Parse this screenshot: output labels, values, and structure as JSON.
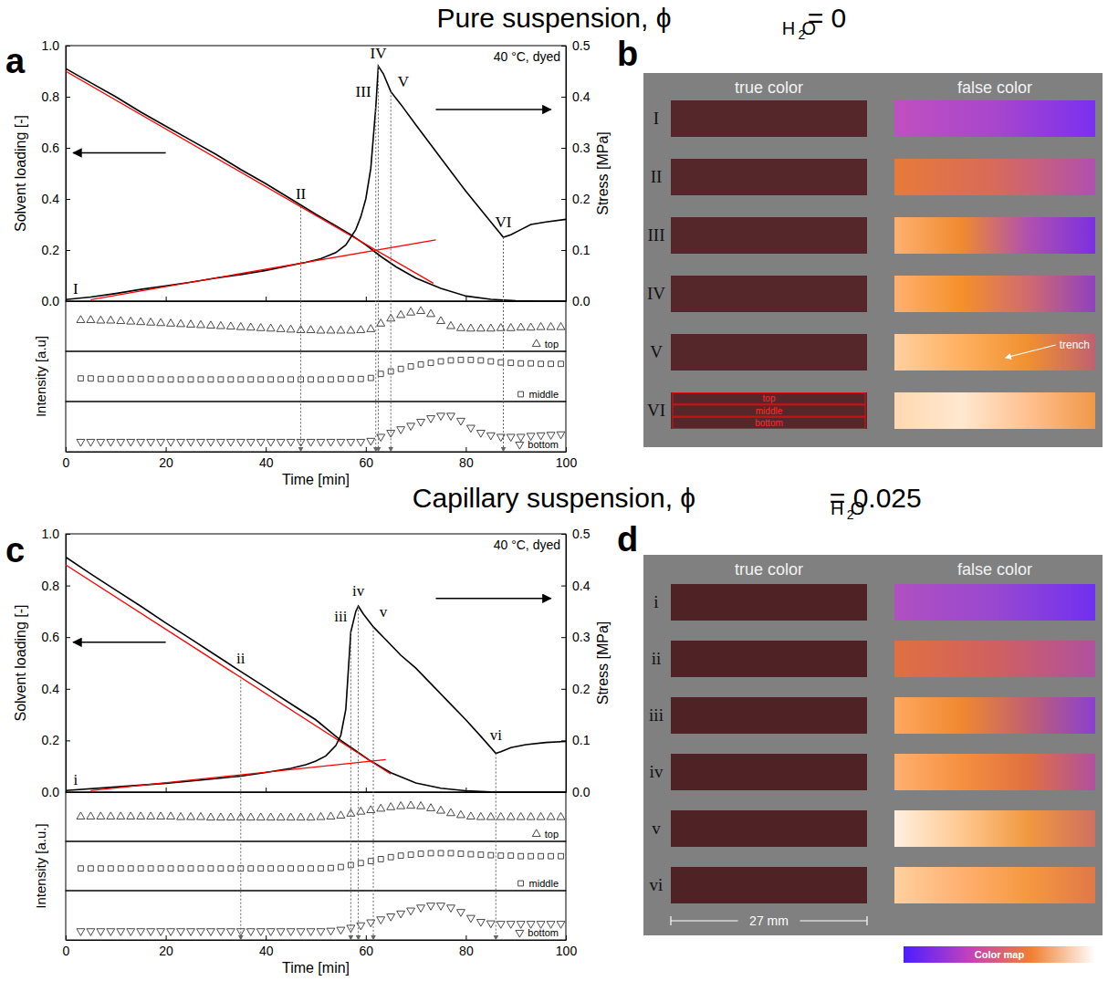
{
  "sections": [
    {
      "title": [
        "Pure suspension, ϕ",
        "H",
        "2",
        "O",
        " = 0"
      ],
      "chart_letter": "a",
      "image_letter": "b"
    },
    {
      "title": [
        "Capillary suspension, ϕ",
        "H",
        "2",
        "O",
        " = 0.025"
      ],
      "chart_letter": "c",
      "image_letter": "d"
    }
  ],
  "chart_data": [
    {
      "type": "line",
      "xlim": [
        0,
        100
      ],
      "xticks": [
        0,
        20,
        40,
        60,
        80,
        100
      ],
      "tick_labels": "y",
      "ylim": [
        0,
        1
      ],
      "yticks": [
        {
          "value": 0,
          "label": "0.0"
        },
        0.2,
        0.4,
        0.6,
        0.8,
        {
          "value": 1,
          "label": "1.0"
        }
      ],
      "y_label": "Solvent loading [-]",
      "y2lim": [
        0,
        0.5
      ],
      "y2ticks": [
        {
          "value": 0,
          "label": "0.0"
        },
        0.1,
        0.2,
        0.3,
        0.4,
        0.5
      ],
      "y2_label": "Stress [MPa]",
      "annotation": "40 °C, dyed",
      "series": [
        {
          "type": "line",
          "color": "#000000",
          "x": [
            0,
            5,
            10,
            15,
            20,
            25,
            30,
            35,
            40,
            45,
            50,
            54,
            57,
            60,
            63,
            66,
            70,
            75,
            80,
            85,
            90,
            95,
            100
          ],
          "values": [
            0.91,
            0.855,
            0.8,
            0.74,
            0.685,
            0.63,
            0.575,
            0.515,
            0.46,
            0.4,
            0.34,
            0.295,
            0.26,
            0.22,
            0.175,
            0.135,
            0.09,
            0.05,
            0.02,
            0.007,
            0.002,
            0,
            0
          ]
        },
        {
          "type": "line",
          "color": "#ff0000",
          "x": [
            0,
            73.5
          ],
          "values": [
            0.9,
            0.07
          ]
        },
        {
          "type": "line",
          "axis": "y2",
          "color": "#000000",
          "x": [
            0,
            5,
            10,
            15,
            20,
            25,
            30,
            35,
            40,
            45,
            48,
            51,
            54,
            56,
            58,
            59,
            60,
            61,
            62,
            62.5,
            63.5,
            65,
            67,
            70,
            75,
            80,
            85,
            87.5,
            89,
            91,
            93,
            96,
            100
          ],
          "values": [
            0.003,
            0.008,
            0.015,
            0.023,
            0.03,
            0.037,
            0.045,
            0.052,
            0.06,
            0.07,
            0.076,
            0.083,
            0.095,
            0.11,
            0.14,
            0.165,
            0.2,
            0.26,
            0.38,
            0.46,
            0.445,
            0.41,
            0.385,
            0.345,
            0.28,
            0.215,
            0.155,
            0.125,
            0.13,
            0.14,
            0.15,
            0.155,
            0.16
          ]
        },
        {
          "type": "line",
          "axis": "y2",
          "color": "#ff0000",
          "x": [
            5,
            74
          ],
          "values": [
            0.003,
            0.12
          ]
        }
      ],
      "vlines": [
        {
          "x": 47,
          "y": 0.37
        },
        {
          "x": 62,
          "y": 0.76
        },
        {
          "x": 62.5,
          "y": 0.92
        },
        {
          "x": 65,
          "y": 0.82
        },
        {
          "x": 87.5,
          "y": 0.25
        }
      ],
      "labels": [
        {
          "text": "I",
          "x": 2,
          "y": 0.03
        },
        {
          "text": "II",
          "x": 47,
          "y": 0.4
        },
        {
          "text": "III",
          "x": 59.5,
          "y": 0.8
        },
        {
          "text": "IV",
          "x": 62.5,
          "y": 0.95
        },
        {
          "text": "V",
          "x": 67.5,
          "y": 0.84
        },
        {
          "text": "VI",
          "x": 87.5,
          "y": 0.29
        }
      ]
    },
    {
      "type": "scatter",
      "xlim": [
        0,
        100
      ],
      "xticks": [
        0,
        20,
        40,
        60,
        80,
        100
      ],
      "x_label": "Time [min]",
      "ylim": [
        0,
        1
      ],
      "y_label": "Intensity [a.u]",
      "tick_labels": "x",
      "legend": "lower right",
      "x": [
        3,
        5,
        7,
        9,
        11,
        13,
        15,
        17,
        19,
        21,
        23,
        25,
        27,
        29,
        31,
        33,
        35,
        37,
        39,
        41,
        43,
        45,
        47,
        49,
        51,
        53,
        55,
        57,
        59,
        61,
        63,
        65,
        67,
        69,
        71,
        73,
        75,
        77,
        79,
        81,
        83,
        85,
        87,
        89,
        91,
        93,
        95,
        97,
        99
      ],
      "series": [
        {
          "name": "top",
          "marker": "triangle-up",
          "color": "#333333",
          "values": [
            0.62,
            0.62,
            0.61,
            0.61,
            0.6,
            0.59,
            0.58,
            0.57,
            0.56,
            0.55,
            0.54,
            0.53,
            0.52,
            0.51,
            0.5,
            0.49,
            0.48,
            0.47,
            0.46,
            0.45,
            0.44,
            0.43,
            0.42,
            0.42,
            0.41,
            0.41,
            0.41,
            0.41,
            0.42,
            0.44,
            0.55,
            0.65,
            0.72,
            0.77,
            0.8,
            0.74,
            0.6,
            0.5,
            0.46,
            0.45,
            0.45,
            0.45,
            0.46,
            0.46,
            0.47,
            0.47,
            0.48,
            0.48,
            0.48
          ]
        },
        {
          "name": "middle",
          "marker": "square",
          "color": "#333333",
          "values": [
            0.46,
            0.46,
            0.45,
            0.45,
            0.45,
            0.45,
            0.45,
            0.45,
            0.44,
            0.44,
            0.44,
            0.44,
            0.44,
            0.44,
            0.44,
            0.44,
            0.44,
            0.44,
            0.44,
            0.44,
            0.44,
            0.44,
            0.44,
            0.44,
            0.44,
            0.44,
            0.45,
            0.45,
            0.45,
            0.47,
            0.55,
            0.6,
            0.65,
            0.7,
            0.74,
            0.77,
            0.8,
            0.82,
            0.83,
            0.83,
            0.82,
            0.8,
            0.78,
            0.77,
            0.76,
            0.76,
            0.75,
            0.75,
            0.75
          ]
        },
        {
          "name": "bottom",
          "marker": "triangle-down",
          "color": "#333333",
          "values": [
            0.2,
            0.2,
            0.2,
            0.2,
            0.2,
            0.2,
            0.2,
            0.2,
            0.2,
            0.2,
            0.2,
            0.2,
            0.2,
            0.2,
            0.2,
            0.2,
            0.2,
            0.2,
            0.2,
            0.2,
            0.2,
            0.2,
            0.2,
            0.2,
            0.2,
            0.2,
            0.2,
            0.2,
            0.2,
            0.22,
            0.3,
            0.38,
            0.45,
            0.52,
            0.6,
            0.67,
            0.72,
            0.72,
            0.62,
            0.48,
            0.38,
            0.33,
            0.3,
            0.3,
            0.3,
            0.32,
            0.33,
            0.34,
            0.35
          ]
        }
      ]
    },
    {
      "type": "line",
      "xlim": [
        0,
        100
      ],
      "xticks": [
        0,
        20,
        40,
        60,
        80,
        100
      ],
      "tick_labels": "y",
      "ylim": [
        0,
        1
      ],
      "yticks": [
        {
          "value": 0,
          "label": "0.0"
        },
        0.2,
        0.4,
        0.6,
        0.8,
        {
          "value": 1,
          "label": "1.0"
        }
      ],
      "y_label": "Solvent loading [-]",
      "y2lim": [
        0,
        0.5
      ],
      "y2ticks": [
        {
          "value": 0,
          "label": "0.0"
        },
        0.1,
        0.2,
        0.3,
        0.4,
        0.5
      ],
      "y2_label": "Stress [MPa]",
      "annotation": "40 °C, dyed",
      "series": [
        {
          "type": "line",
          "color": "#000000",
          "x": [
            0,
            5,
            10,
            15,
            20,
            25,
            30,
            35,
            40,
            45,
            50,
            55,
            58,
            61,
            65,
            70,
            75,
            80,
            85,
            90,
            100
          ],
          "values": [
            0.91,
            0.845,
            0.782,
            0.72,
            0.655,
            0.593,
            0.53,
            0.467,
            0.405,
            0.342,
            0.28,
            0.2,
            0.16,
            0.12,
            0.075,
            0.035,
            0.015,
            0.005,
            0.001,
            0,
            0
          ]
        },
        {
          "type": "line",
          "color": "#ff0000",
          "x": [
            0,
            65
          ],
          "values": [
            0.88,
            0.07
          ]
        },
        {
          "type": "line",
          "axis": "y2",
          "color": "#000000",
          "x": [
            0,
            10,
            20,
            30,
            35,
            40,
            45,
            48,
            50,
            52,
            54,
            55,
            56,
            57,
            58,
            58.5,
            59.5,
            61.5,
            64,
            67,
            70,
            73,
            76,
            80,
            83,
            86,
            87,
            89,
            92,
            96,
            100
          ],
          "values": [
            0.003,
            0.01,
            0.017,
            0.026,
            0.031,
            0.038,
            0.046,
            0.053,
            0.06,
            0.07,
            0.09,
            0.11,
            0.16,
            0.31,
            0.35,
            0.36,
            0.345,
            0.32,
            0.295,
            0.265,
            0.24,
            0.21,
            0.18,
            0.14,
            0.108,
            0.075,
            0.078,
            0.086,
            0.092,
            0.096,
            0.098
          ]
        },
        {
          "type": "line",
          "axis": "y2",
          "color": "#ff0000",
          "x": [
            5,
            64
          ],
          "values": [
            0.003,
            0.063
          ]
        }
      ],
      "vlines": [
        {
          "x": 35,
          "y": 0.45
        },
        {
          "x": 57,
          "y": 0.62
        },
        {
          "x": 58.5,
          "y": 0.72
        },
        {
          "x": 61.5,
          "y": 0.64
        },
        {
          "x": 86,
          "y": 0.15
        }
      ],
      "labels": [
        {
          "text": "i",
          "x": 2,
          "y": 0.03
        },
        {
          "text": "ii",
          "x": 35,
          "y": 0.5
        },
        {
          "text": "iii",
          "x": 55,
          "y": 0.66
        },
        {
          "text": "iv",
          "x": 58.5,
          "y": 0.76
        },
        {
          "text": "v",
          "x": 63.5,
          "y": 0.68
        },
        {
          "text": "vi",
          "x": 86,
          "y": 0.2
        }
      ]
    },
    {
      "type": "scatter",
      "xlim": [
        0,
        100
      ],
      "xticks": [
        0,
        20,
        40,
        60,
        80,
        100
      ],
      "x_label": "Time [min]",
      "ylim": [
        0,
        1
      ],
      "y_label": "Intensity [a.u.]",
      "tick_labels": "x",
      "legend": "lower right",
      "x": [
        3,
        5,
        7,
        9,
        11,
        13,
        15,
        17,
        19,
        21,
        23,
        25,
        27,
        29,
        31,
        33,
        35,
        37,
        39,
        41,
        43,
        45,
        47,
        49,
        51,
        53,
        55,
        57,
        59,
        61,
        63,
        65,
        67,
        69,
        71,
        73,
        75,
        77,
        79,
        81,
        83,
        85,
        87,
        89,
        91,
        93,
        95,
        97,
        99
      ],
      "series": [
        {
          "name": "top",
          "marker": "triangle-up",
          "color": "#333333",
          "values": [
            0.5,
            0.5,
            0.5,
            0.5,
            0.5,
            0.5,
            0.5,
            0.5,
            0.5,
            0.5,
            0.49,
            0.49,
            0.49,
            0.48,
            0.48,
            0.48,
            0.48,
            0.48,
            0.48,
            0.48,
            0.48,
            0.48,
            0.48,
            0.48,
            0.49,
            0.5,
            0.52,
            0.56,
            0.6,
            0.63,
            0.66,
            0.69,
            0.71,
            0.72,
            0.71,
            0.67,
            0.62,
            0.57,
            0.53,
            0.5,
            0.49,
            0.49,
            0.49,
            0.49,
            0.49,
            0.49,
            0.49,
            0.49,
            0.49
          ]
        },
        {
          "name": "middle",
          "marker": "square",
          "color": "#333333",
          "values": [
            0.45,
            0.45,
            0.45,
            0.45,
            0.45,
            0.45,
            0.45,
            0.45,
            0.45,
            0.45,
            0.45,
            0.45,
            0.45,
            0.45,
            0.45,
            0.45,
            0.45,
            0.45,
            0.45,
            0.45,
            0.45,
            0.45,
            0.45,
            0.45,
            0.45,
            0.46,
            0.48,
            0.52,
            0.56,
            0.6,
            0.64,
            0.68,
            0.71,
            0.73,
            0.75,
            0.76,
            0.76,
            0.76,
            0.75,
            0.74,
            0.73,
            0.72,
            0.71,
            0.71,
            0.7,
            0.7,
            0.7,
            0.7,
            0.7
          ]
        },
        {
          "name": "bottom",
          "marker": "triangle-down",
          "color": "#333333",
          "values": [
            0.18,
            0.18,
            0.18,
            0.18,
            0.18,
            0.18,
            0.18,
            0.18,
            0.18,
            0.18,
            0.18,
            0.18,
            0.18,
            0.18,
            0.18,
            0.18,
            0.18,
            0.18,
            0.18,
            0.18,
            0.18,
            0.18,
            0.18,
            0.18,
            0.18,
            0.19,
            0.21,
            0.25,
            0.3,
            0.36,
            0.42,
            0.48,
            0.54,
            0.6,
            0.66,
            0.7,
            0.7,
            0.66,
            0.57,
            0.45,
            0.37,
            0.34,
            0.33,
            0.33,
            0.33,
            0.33,
            0.33,
            0.33,
            0.33
          ]
        }
      ]
    }
  ],
  "images": [
    {
      "headers": [
        "true color",
        "false color"
      ],
      "true_color": "#55272b",
      "rows": [
        {
          "label": "I",
          "colors": [
            "#c050c0",
            "#a846cc",
            "#7a30f0"
          ]
        },
        {
          "label": "II",
          "colors": [
            "#e87a3a",
            "#d86a5a",
            "#b050b0"
          ]
        },
        {
          "label": "III",
          "colors": [
            "#ffb070",
            "#f08a30",
            "#b050b0",
            "#7a30e0"
          ]
        },
        {
          "label": "IV",
          "colors": [
            "#ffb070",
            "#f5902a",
            "#d06a70",
            "#9040c0"
          ]
        },
        {
          "label": "V",
          "colors": [
            "#ffd0a0",
            "#ffb060",
            "#f09030",
            "#c06070"
          ],
          "annotation": "trench"
        },
        {
          "label": "VI",
          "colors": [
            "#ffd8b0",
            "#ffe8d0",
            "#ffc090",
            "#f09848"
          ],
          "regions": [
            "top",
            "middle",
            "bottom"
          ]
        }
      ]
    },
    {
      "headers": [
        "true color",
        "false color"
      ],
      "true_color": "#4f2226",
      "rows": [
        {
          "label": "i",
          "colors": [
            "#b050c0",
            "#9848d0",
            "#7030f0"
          ]
        },
        {
          "label": "ii",
          "colors": [
            "#e07040",
            "#d06060",
            "#b050a0"
          ]
        },
        {
          "label": "iii",
          "colors": [
            "#ffa860",
            "#f08830",
            "#c06070",
            "#8a40d0"
          ]
        },
        {
          "label": "iv",
          "colors": [
            "#ffb070",
            "#f59040",
            "#e07040",
            "#b050a0"
          ]
        },
        {
          "label": "v",
          "colors": [
            "#fff0e0",
            "#ffc890",
            "#f09840",
            "#d07060"
          ]
        },
        {
          "label": "vi",
          "colors": [
            "#ffd0a0",
            "#ffb070",
            "#f59840",
            "#e07848"
          ]
        }
      ],
      "scale_bar": "27 mm",
      "color_map": {
        "label": "Color map",
        "colors": [
          "#4b1eff",
          "#c040c0",
          "#f08030",
          "#ffffff"
        ]
      }
    }
  ]
}
